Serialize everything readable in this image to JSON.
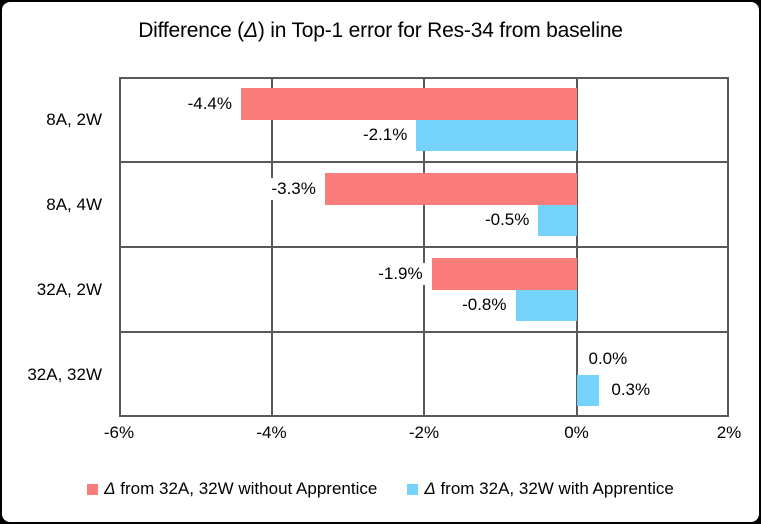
{
  "title": "Difference (Δ) in Top-1 error for Res-34 from baseline",
  "colors": {
    "series_without_apprentice": "#FB7D7B",
    "series_with_apprentice": "#75D3FB",
    "plot_border": "#595959",
    "frame_border": "#000000",
    "background": "#FFFFFF",
    "text": "#000000"
  },
  "chart_data": {
    "type": "bar",
    "orientation": "horizontal",
    "title": "Difference (Δ) in Top-1 error for Res-34 from baseline",
    "categories": [
      "8A, 2W",
      "8A, 4W",
      "32A, 2W",
      "32A, 32W"
    ],
    "series": [
      {
        "name": "Δ from 32A, 32W without Apprentice",
        "color": "#FB7D7B",
        "values": [
          -4.4,
          -3.3,
          -1.9,
          0.0
        ],
        "data_labels": [
          "-4.4%",
          "-3.3%",
          "-1.9%",
          "0.0%"
        ]
      },
      {
        "name": "Δ from 32A, 32W with Apprentice",
        "color": "#75D3FB",
        "values": [
          -2.1,
          -0.5,
          -0.8,
          0.3
        ],
        "data_labels": [
          "-2.1%",
          "-0.5%",
          "-0.8%",
          "0.3%"
        ]
      }
    ],
    "xlim": [
      -6,
      2
    ],
    "x_ticks": [
      {
        "value": -6,
        "label": "-6%"
      },
      {
        "value": -4,
        "label": "-4%"
      },
      {
        "value": -2,
        "label": "-2%"
      },
      {
        "value": 0,
        "label": "0%"
      },
      {
        "value": 2,
        "label": "2%"
      }
    ],
    "grid": true,
    "legend_position": "bottom"
  }
}
